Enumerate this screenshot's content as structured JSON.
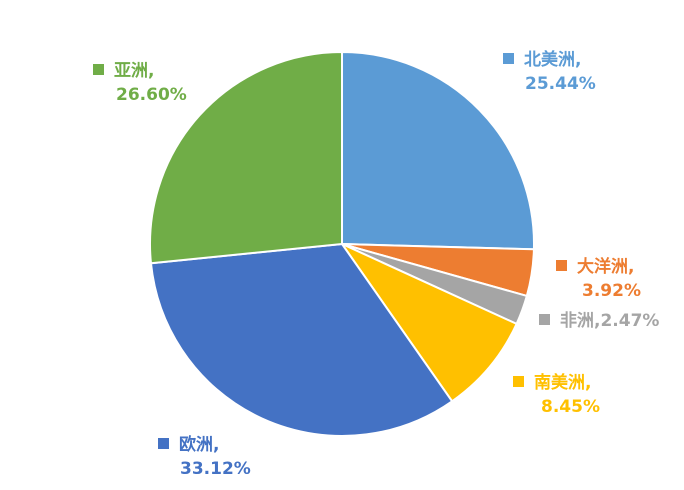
{
  "chart_data": {
    "type": "pie",
    "slices": [
      {
        "label": "北美洲",
        "value": 25.44,
        "pct_text": "25.44%",
        "color": "#5B9BD5"
      },
      {
        "label": "大洋洲",
        "value": 3.92,
        "pct_text": "3.92%",
        "color": "#ED7D31"
      },
      {
        "label": "非洲",
        "value": 2.47,
        "pct_text": "2.47%",
        "color": "#A5A5A5"
      },
      {
        "label": "南美洲",
        "value": 8.45,
        "pct_text": "8.45%",
        "color": "#FFC000"
      },
      {
        "label": "欧洲",
        "value": 33.12,
        "pct_text": "33.12%",
        "color": "#4472C4"
      },
      {
        "label": "亚洲",
        "value": 26.6,
        "pct_text": "26.60%",
        "color": "#70AD47"
      }
    ],
    "start_angle_deg": 0,
    "direction": "clockwise",
    "separator": ",",
    "legend": "data-labels-outside"
  }
}
